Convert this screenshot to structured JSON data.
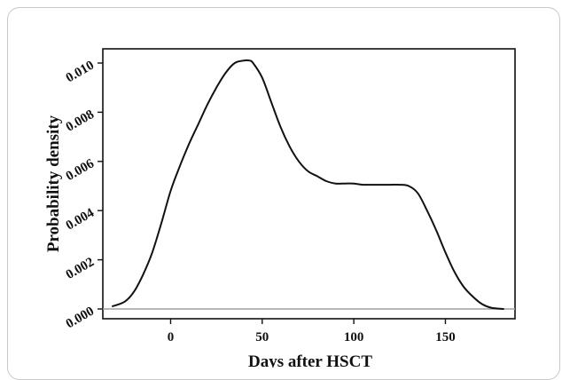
{
  "chart_data": {
    "type": "line",
    "title": "",
    "xlabel": "Days after HSCT",
    "ylabel": "Probability density",
    "xlim": [
      -37,
      188
    ],
    "ylim": [
      0,
      0.0102
    ],
    "xticks": [
      0,
      50,
      100,
      150
    ],
    "xtick_labels": [
      "0",
      "50",
      "100",
      "150"
    ],
    "yticks": [
      0.0,
      0.002,
      0.004,
      0.006,
      0.008,
      0.01
    ],
    "ytick_labels": [
      "0.000",
      "0.002",
      "0.004",
      "0.006",
      "0.008",
      "0.010"
    ],
    "grid": false,
    "legend": "none",
    "reference_line_y": 0,
    "colors": {
      "line": "#111111",
      "baseline": "#a0a0a0",
      "frame": "#c8c8c8"
    },
    "series": [
      {
        "x": [
          -32,
          -25,
          -20,
          -15,
          -10,
          -5,
          0,
          5,
          10,
          15,
          20,
          25,
          30,
          35,
          40,
          43,
          45,
          50,
          55,
          60,
          65,
          70,
          75,
          80,
          85,
          90,
          95,
          100,
          105,
          110,
          115,
          120,
          125,
          130,
          135,
          140,
          145,
          150,
          155,
          160,
          165,
          170,
          175,
          182
        ],
        "y": [
          0.0001,
          0.0003,
          0.0007,
          0.0014,
          0.0023,
          0.0035,
          0.0048,
          0.0058,
          0.0067,
          0.0075,
          0.0083,
          0.009,
          0.0096,
          0.01,
          0.0101,
          0.0101,
          0.01,
          0.0094,
          0.0084,
          0.0074,
          0.0066,
          0.006,
          0.0056,
          0.0054,
          0.0052,
          0.0051,
          0.0051,
          0.0051,
          0.00505,
          0.00505,
          0.00505,
          0.00505,
          0.00505,
          0.005,
          0.0047,
          0.004,
          0.0032,
          0.0023,
          0.0015,
          0.0009,
          0.0005,
          0.0002,
          5e-05,
          0.0
        ]
      }
    ]
  }
}
